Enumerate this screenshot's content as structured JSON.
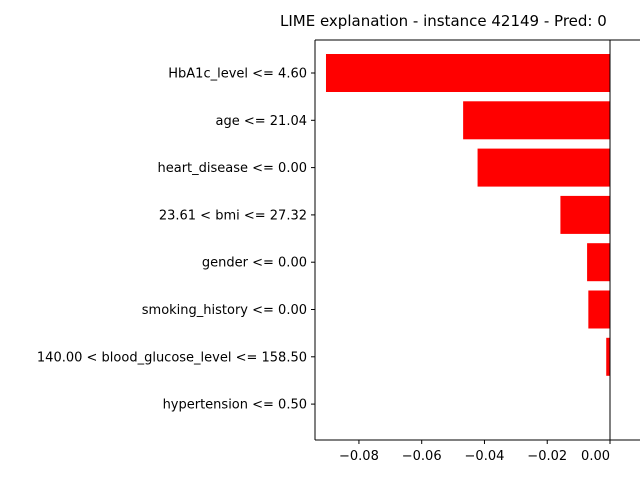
{
  "chart_data": {
    "type": "bar",
    "orientation": "horizontal",
    "title": "LIME explanation - instance 42149 - Pred: 0",
    "xlabel": "",
    "ylabel": "",
    "categories": [
      "HbA1c_level <= 4.60",
      "age <= 21.04",
      "heart_disease <= 0.00",
      "23.61 < bmi <= 27.32",
      "gender <= 0.00",
      "smoking_history <= 0.00",
      "140.00 < blood_glucose_level <= 158.50",
      "hypertension <= 0.50"
    ],
    "values": [
      -0.0905,
      -0.0468,
      -0.0422,
      -0.0158,
      -0.0073,
      -0.0069,
      -0.0012,
      0.0
    ],
    "xlim": [
      -0.094,
      0.0
    ],
    "xticks": [
      -0.08,
      -0.06,
      -0.04,
      -0.02,
      0.0
    ],
    "xtick_labels": [
      "−0.08",
      "−0.06",
      "−0.04",
      "−0.02",
      "0.00"
    ],
    "bar_color": "#ff0000",
    "grid": false,
    "legend": "none"
  }
}
